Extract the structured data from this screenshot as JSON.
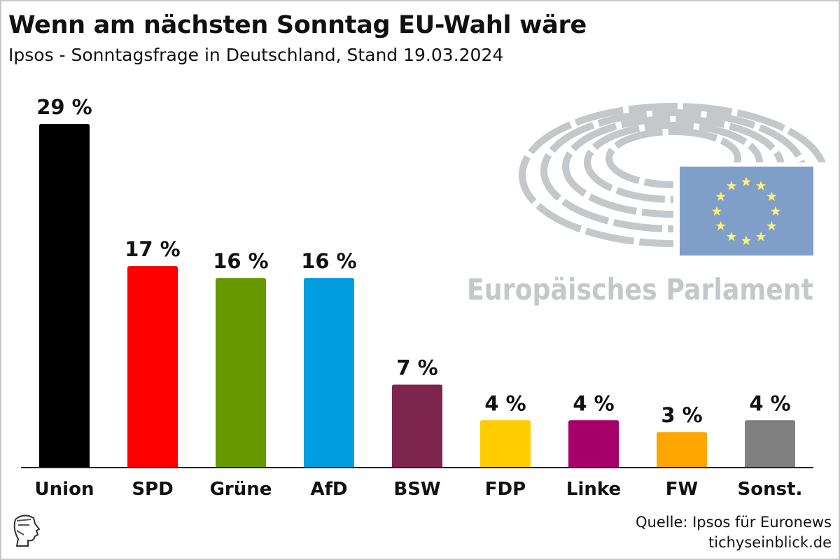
{
  "title": "Wenn am nächsten Sonntag EU-Wahl wäre",
  "subtitle": "Ipsos - Sonntagsfrage in Deutschland, Stand 19.03.2024",
  "source": "Quelle: Ipsos für Euronews",
  "site": "tichyseinblick.de",
  "logo_text": "Europäisches Parlament",
  "chart_data": {
    "type": "bar",
    "categories": [
      "Union",
      "SPD",
      "Grüne",
      "AfD",
      "BSW",
      "FDP",
      "Linke",
      "FW",
      "Sonst."
    ],
    "values": [
      29,
      17,
      16,
      16,
      7,
      4,
      4,
      3,
      4
    ],
    "labels": [
      "29 %",
      "17 %",
      "16 %",
      "16 %",
      "7 %",
      "4 %",
      "4 %",
      "3 %",
      "4 %"
    ],
    "colors": [
      "#000000",
      "#ff0000",
      "#669900",
      "#009ee0",
      "#7d254f",
      "#ffcc00",
      "#a6006b",
      "#ffa500",
      "#808080"
    ],
    "unit": "%",
    "grid": false
  }
}
